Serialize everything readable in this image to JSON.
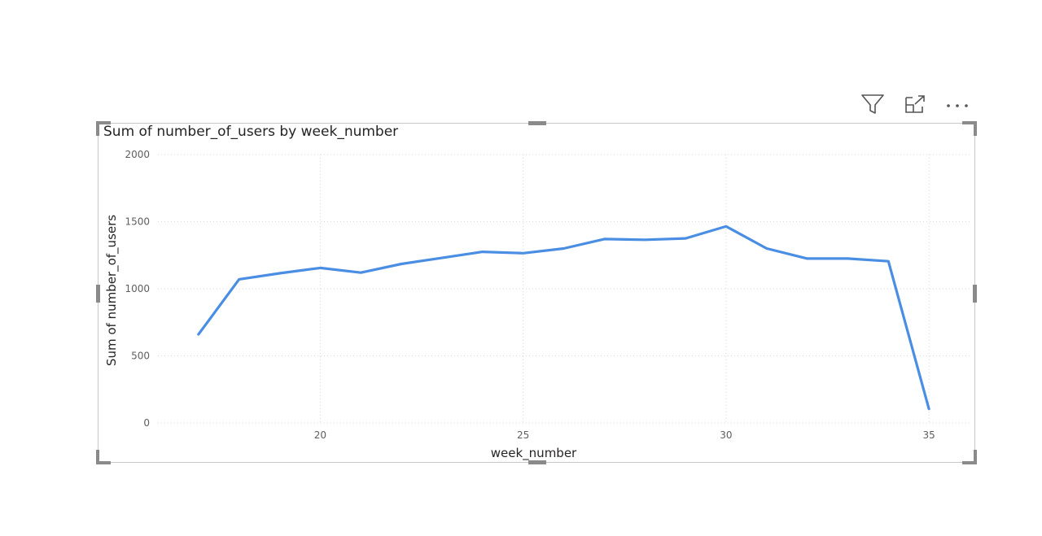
{
  "toolbar": {
    "icons": [
      "filter-icon",
      "focus-mode-icon",
      "more-options-icon"
    ]
  },
  "chart_data": {
    "type": "line",
    "title": "Sum of number_of_users by week_number",
    "xlabel": "week_number",
    "ylabel": "Sum of number_of_users",
    "x": [
      17,
      18,
      19,
      20,
      21,
      22,
      23,
      24,
      25,
      26,
      27,
      28,
      29,
      30,
      31,
      32,
      33,
      34,
      35
    ],
    "series": [
      {
        "values": [
          660,
          1070,
          1115,
          1155,
          1120,
          1185,
          1230,
          1275,
          1265,
          1300,
          1370,
          1365,
          1375,
          1465,
          1300,
          1225,
          1225,
          1205,
          105
        ],
        "color": "#4a8ee3"
      }
    ],
    "xticks": [
      "20",
      "25",
      "30",
      "35"
    ],
    "yticks": [
      "0",
      "500",
      "1000",
      "1500",
      "2000"
    ],
    "xlim": [
      16,
      36
    ],
    "ylim": [
      0,
      2000
    ],
    "grid": true,
    "legend": "none"
  }
}
